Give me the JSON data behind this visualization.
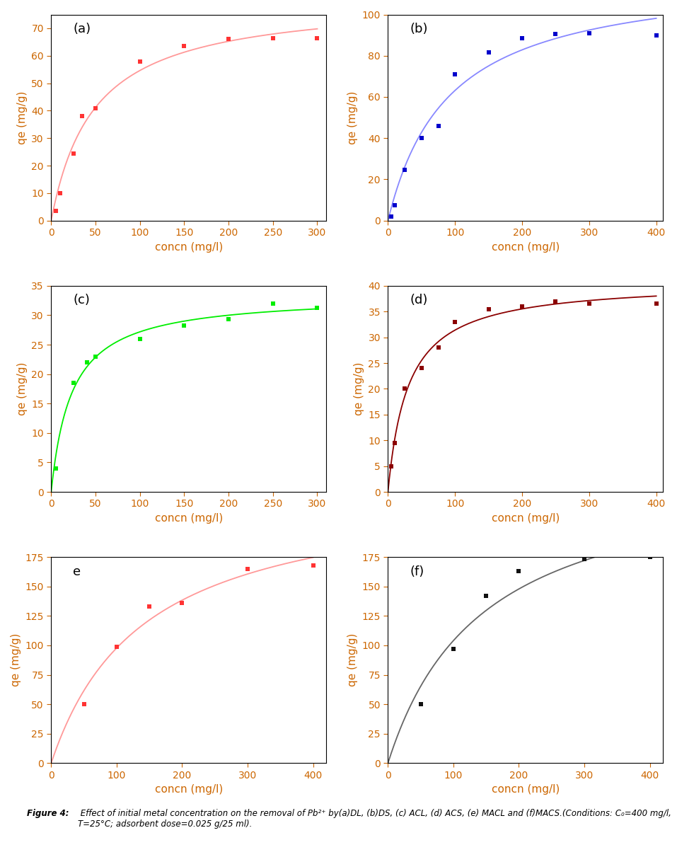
{
  "subplots": [
    {
      "label": "(a)",
      "color": "#FF3333",
      "line_color": "#FF9999",
      "x": [
        5,
        10,
        25,
        35,
        50,
        100,
        150,
        200,
        250,
        300
      ],
      "y": [
        3.5,
        10.0,
        24.5,
        38.0,
        41.0,
        58.0,
        63.5,
        66.0,
        66.5,
        66.5
      ],
      "xlim": [
        0,
        310
      ],
      "ylim": [
        0,
        75
      ],
      "yticks": [
        0,
        10,
        20,
        30,
        40,
        50,
        60,
        70
      ],
      "xticks": [
        0,
        50,
        100,
        150,
        200,
        250,
        300
      ],
      "xlabel": "concn (mg/l)",
      "ylabel": "qe (mg/g)"
    },
    {
      "label": "(b)",
      "color": "#0000CC",
      "line_color": "#8888FF",
      "x": [
        5,
        10,
        25,
        50,
        75,
        100,
        150,
        200,
        250,
        300,
        400
      ],
      "y": [
        2.0,
        7.5,
        24.5,
        40.0,
        46.0,
        71.0,
        81.5,
        88.5,
        90.5,
        91.0,
        90.0
      ],
      "xlim": [
        0,
        410
      ],
      "ylim": [
        0,
        100
      ],
      "yticks": [
        0,
        20,
        40,
        60,
        80,
        100
      ],
      "xticks": [
        0,
        100,
        200,
        300,
        400
      ],
      "xlabel": "concn (mg/l)",
      "ylabel": "qe (mg/g)"
    },
    {
      "label": "(c)",
      "color": "#00EE00",
      "line_color": "#00EE00",
      "x": [
        5,
        25,
        40,
        50,
        100,
        150,
        200,
        250,
        300
      ],
      "y": [
        4.0,
        18.5,
        22.0,
        23.0,
        26.0,
        28.3,
        29.3,
        32.0,
        31.2
      ],
      "xlim": [
        0,
        310
      ],
      "ylim": [
        0,
        35
      ],
      "yticks": [
        0,
        5,
        10,
        15,
        20,
        25,
        30,
        35
      ],
      "xticks": [
        0,
        50,
        100,
        150,
        200,
        250,
        300
      ],
      "xlabel": "concn (mg/l)",
      "ylabel": "qe (mg/g)"
    },
    {
      "label": "(d)",
      "color": "#8B0000",
      "line_color": "#8B0000",
      "x": [
        5,
        10,
        25,
        50,
        75,
        100,
        150,
        200,
        250,
        300,
        400
      ],
      "y": [
        5.0,
        9.5,
        20.0,
        24.0,
        28.0,
        33.0,
        35.5,
        36.0,
        37.0,
        36.5,
        36.5
      ],
      "xlim": [
        0,
        410
      ],
      "ylim": [
        0,
        40
      ],
      "yticks": [
        0,
        5,
        10,
        15,
        20,
        25,
        30,
        35,
        40
      ],
      "xticks": [
        0,
        100,
        200,
        300,
        400
      ],
      "xlabel": "concn (mg/l)",
      "ylabel": "qe (mg/g)"
    },
    {
      "label": "e",
      "color": "#FF3333",
      "line_color": "#FF9999",
      "x": [
        50,
        100,
        150,
        200,
        300,
        400
      ],
      "y": [
        50.0,
        99.0,
        133.0,
        136.0,
        165.0,
        168.0
      ],
      "xlim": [
        0,
        420
      ],
      "ylim": [
        0,
        175
      ],
      "yticks": [
        0,
        25,
        50,
        75,
        100,
        125,
        150,
        175
      ],
      "xticks": [
        0,
        100,
        200,
        300,
        400
      ],
      "xlabel": "concn (mg/l)",
      "ylabel": "qe (mg/g)"
    },
    {
      "label": "(f)",
      "color": "#111111",
      "line_color": "#666666",
      "x": [
        50,
        100,
        150,
        200,
        300,
        400
      ],
      "y": [
        50.0,
        97.0,
        142.0,
        163.0,
        173.5,
        175.0
      ],
      "xlim": [
        0,
        420
      ],
      "ylim": [
        0,
        175
      ],
      "yticks": [
        0,
        25,
        50,
        75,
        100,
        125,
        150,
        175
      ],
      "xticks": [
        0,
        100,
        200,
        300,
        400
      ],
      "xlabel": "concn (mg/l)",
      "ylabel": "qe (mg/g)"
    }
  ],
  "caption_bold": "Figure 4:",
  "caption_rest": " Effect of initial metal concentration on the removal of Pb²⁺ by(a)DL, (b)DS, (c) ACL, (d) ACS, (e) MACL and (f)MACS.(Conditions: C₀=400 mg/l, T=25°C; adsorbent dose=0.025 g/25 ml).",
  "tick_color": "#CC6600",
  "label_color": "#CC6600",
  "figure_bg": "#FFFFFF"
}
